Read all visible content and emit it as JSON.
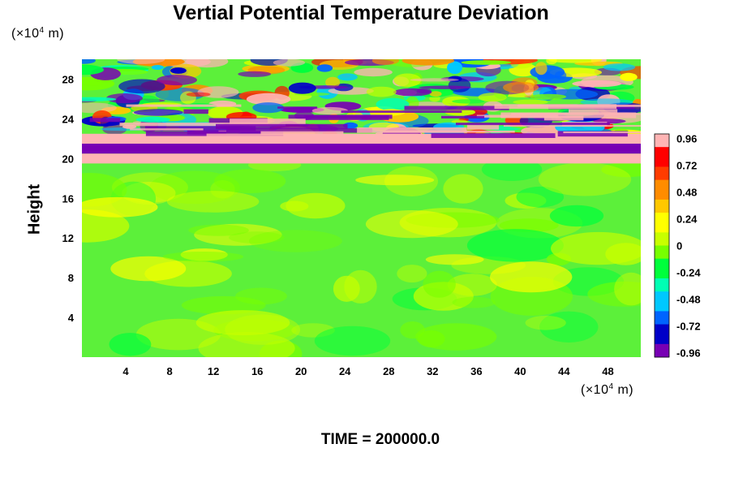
{
  "chart_data": {
    "type": "heatmap",
    "title": "Vertial Potential Temperature Deviation",
    "ylabel": "Height",
    "y_unit": {
      "prefix": "(×10",
      "exp": "4",
      "suffix": " m)"
    },
    "x_unit": {
      "prefix": "(×10",
      "exp": "4",
      "suffix": " m)"
    },
    "xlim": [
      0,
      51
    ],
    "ylim": [
      0,
      30
    ],
    "x_ticks": [
      "4",
      "8",
      "12",
      "16",
      "20",
      "24",
      "28",
      "32",
      "36",
      "40",
      "44",
      "48"
    ],
    "x_tick_values": [
      4,
      8,
      12,
      16,
      20,
      24,
      28,
      32,
      36,
      40,
      44,
      48
    ],
    "y_ticks": [
      "4",
      "8",
      "12",
      "16",
      "20",
      "24",
      "28"
    ],
    "y_tick_values": [
      4,
      8,
      12,
      16,
      20,
      24,
      28
    ],
    "colorbar": {
      "range": [
        -1.0,
        1.0
      ],
      "labels": [
        "0.96",
        "0.72",
        "0.48",
        "0.24",
        "0",
        "-0.24",
        "-0.48",
        "-0.72",
        "-0.96"
      ],
      "label_values": [
        0.96,
        0.72,
        0.48,
        0.24,
        0,
        -0.24,
        -0.48,
        -0.72,
        -0.96
      ],
      "levels": 34
    },
    "field_regions": [
      {
        "y_range": [
          0,
          19.5
        ],
        "description_value": 0.0
      },
      {
        "y_range": [
          19.5,
          20.5
        ],
        "description_value": 1.0
      },
      {
        "y_range": [
          20.5,
          21.5
        ],
        "description_value": -1.0
      },
      {
        "y_range": [
          21.5,
          22.5
        ],
        "description_value": 1.0
      },
      {
        "y_range": [
          22.5,
          30
        ],
        "description_value": 0.0
      }
    ],
    "grid": false,
    "colormap": [
      "#7800b4",
      "#0000c8",
      "#0064ff",
      "#00c8ff",
      "#00ffb4",
      "#00ff3c",
      "#78ff00",
      "#c8ff00",
      "#ffff00",
      "#ffc800",
      "#ff8c00",
      "#ff3c00",
      "#ff0000",
      "#ffb4b4"
    ]
  },
  "footer": {
    "time_text": "TIME = 200000.0"
  }
}
